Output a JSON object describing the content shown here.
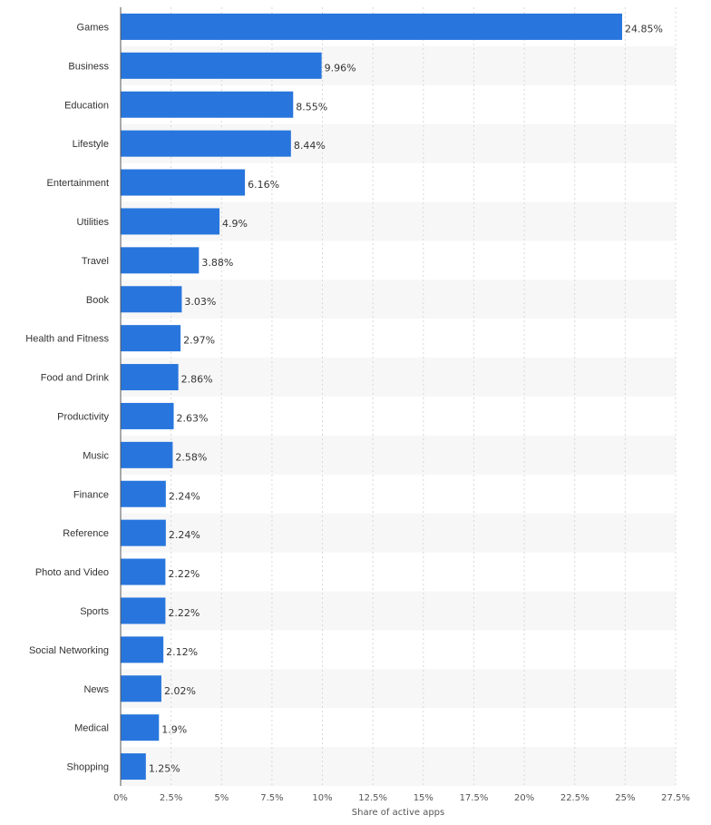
{
  "chart_data": {
    "type": "bar",
    "orientation": "horizontal",
    "categories": [
      "Games",
      "Business",
      "Education",
      "Lifestyle",
      "Entertainment",
      "Utilities",
      "Travel",
      "Book",
      "Health and Fitness",
      "Food and Drink",
      "Productivity",
      "Music",
      "Finance",
      "Reference",
      "Photo and Video",
      "Sports",
      "Social Networking",
      "News",
      "Medical",
      "Shopping"
    ],
    "values": [
      24.85,
      9.96,
      8.55,
      8.44,
      6.16,
      4.9,
      3.88,
      3.03,
      2.97,
      2.86,
      2.63,
      2.58,
      2.24,
      2.24,
      2.22,
      2.22,
      2.12,
      2.02,
      1.9,
      1.25
    ],
    "value_labels": [
      "24.85%",
      "9.96%",
      "8.55%",
      "8.44%",
      "6.16%",
      "4.9%",
      "3.88%",
      "3.03%",
      "2.97%",
      "2.86%",
      "2.63%",
      "2.58%",
      "2.24%",
      "2.24%",
      "2.22%",
      "2.22%",
      "2.12%",
      "2.02%",
      "1.9%",
      "1.25%"
    ],
    "xticks": [
      0,
      2.5,
      5,
      7.5,
      10,
      12.5,
      15,
      17.5,
      20,
      22.5,
      25,
      27.5
    ],
    "xtick_labels": [
      "0%",
      "2.5%",
      "5%",
      "7.5%",
      "10%",
      "12.5%",
      "15%",
      "17.5%",
      "20%",
      "22.5%",
      "25%",
      "27.5%"
    ],
    "xlim": [
      0,
      27.5
    ],
    "xlabel": "Share of active apps",
    "grid": "vertical dashed",
    "legend": "none",
    "colors": {
      "bar": "#2876dd",
      "band": "#f7f7f7",
      "grid": "#d8d8d8",
      "axis": "#555555"
    }
  }
}
